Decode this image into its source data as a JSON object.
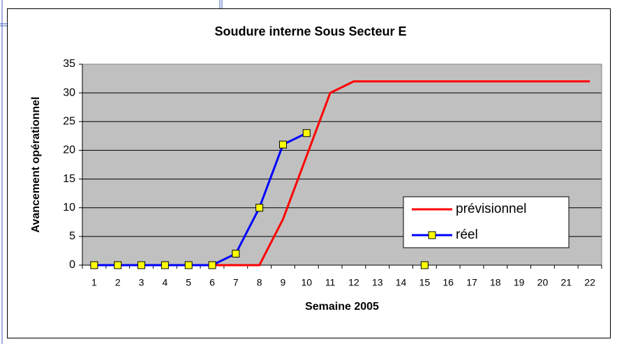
{
  "chart_data": {
    "type": "line",
    "title": "Soudure interne Sous Secteur E",
    "x_label": "Semaine 2005",
    "y_label": "Avancement opérationnel",
    "categories": [
      "1",
      "2",
      "3",
      "4",
      "5",
      "6",
      "7",
      "8",
      "9",
      "10",
      "11",
      "12",
      "13",
      "14",
      "15",
      "16",
      "17",
      "18",
      "19",
      "20",
      "21",
      "22"
    ],
    "series": [
      {
        "name": "prévisionnel",
        "color": "#ff0000",
        "values": [
          0,
          0,
          0,
          0,
          0,
          0,
          0,
          0,
          8,
          19,
          30,
          32,
          32,
          32,
          32,
          32,
          32,
          32,
          32,
          32,
          32,
          32
        ]
      },
      {
        "name": "réel",
        "color": "#0000ff",
        "marker": "square",
        "marker_color": "#ffff00",
        "values": [
          0,
          0,
          0,
          0,
          0,
          0,
          2,
          10,
          21,
          23,
          null,
          null,
          null,
          null,
          0,
          null,
          null,
          null,
          null,
          null,
          null,
          null
        ]
      }
    ],
    "ylim": [
      0,
      35
    ],
    "yticks": [
      0,
      5,
      10,
      15,
      20,
      25,
      30,
      35
    ],
    "grid": true,
    "plot_background": "#c0c0c0"
  }
}
